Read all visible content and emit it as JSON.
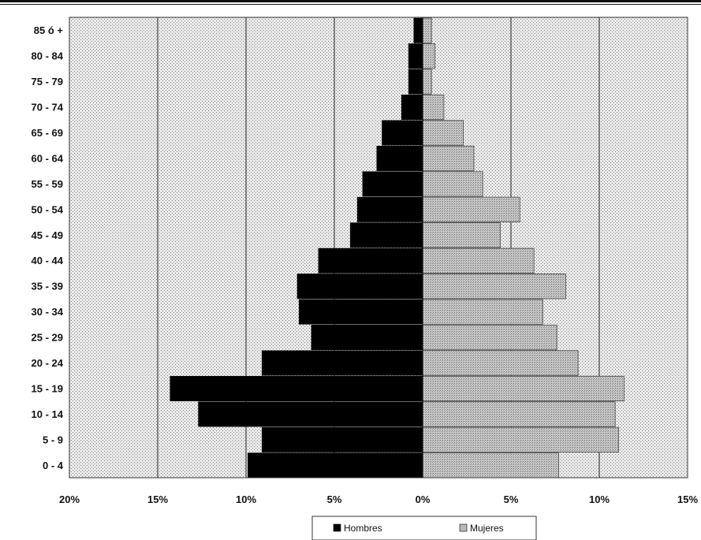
{
  "chart_data": {
    "type": "bar",
    "orientation": "horizontal",
    "title": "",
    "xlabel": "",
    "ylabel": "",
    "categories": [
      "0 - 4",
      "5 - 9",
      "10 - 14",
      "15 - 19",
      "20 - 24",
      "25 - 29",
      "30 - 34",
      "35 - 39",
      "40 - 44",
      "45 - 49",
      "50 - 54",
      "55 - 59",
      "60 - 64",
      "65 - 69",
      "70 - 74",
      "75 - 79",
      "80 - 84",
      "85 ó +"
    ],
    "series": [
      {
        "name": "Hombres",
        "color": "#000000",
        "values": [
          9.9,
          9.1,
          12.7,
          14.3,
          9.1,
          6.3,
          7.0,
          7.1,
          5.9,
          4.1,
          3.7,
          3.4,
          2.6,
          2.3,
          1.2,
          0.8,
          0.8,
          0.5
        ]
      },
      {
        "name": "Mujeres",
        "color": "#b8b8b8",
        "values": [
          7.7,
          11.1,
          10.9,
          11.4,
          8.8,
          7.6,
          6.8,
          8.1,
          6.3,
          4.4,
          5.5,
          3.4,
          2.9,
          2.3,
          1.2,
          0.5,
          0.7,
          0.5
        ]
      }
    ],
    "xlim": [
      -20,
      15
    ],
    "xticks": [
      "20%",
      "15%",
      "10%",
      "5%",
      "0%",
      "5%",
      "10%",
      "15%"
    ],
    "grid": true,
    "legend": "bottom-center"
  }
}
